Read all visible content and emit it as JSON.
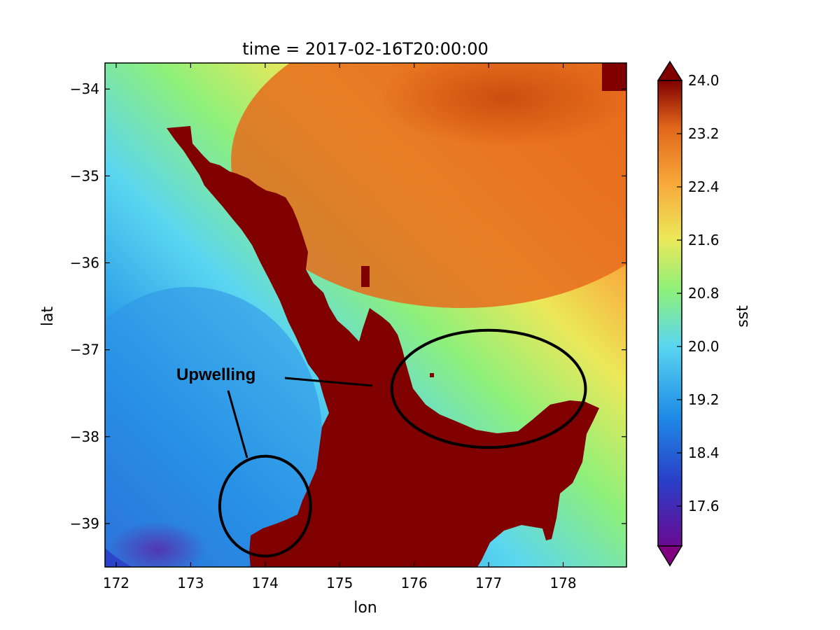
{
  "chart_data": {
    "type": "heatmap",
    "title": "time = 2017-02-16T20:00:00",
    "xlabel": "lon",
    "ylabel": "lat",
    "colorbar_label": "sst",
    "x_ticks": [
      "172",
      "173",
      "174",
      "175",
      "176",
      "177",
      "178"
    ],
    "y_ticks": [
      "−34",
      "−35",
      "−36",
      "−37",
      "−38",
      "−39"
    ],
    "colorbar_ticks": [
      "24.0",
      "23.2",
      "22.4",
      "21.6",
      "20.8",
      "20.0",
      "19.2",
      "18.4",
      "17.6"
    ],
    "xlim": [
      171.85,
      178.85
    ],
    "ylim": [
      -39.5,
      -33.7
    ],
    "clim": [
      17.0,
      24.0
    ],
    "colormap": [
      "#800080",
      "#2a3fc8",
      "#1e8ce6",
      "#5bd6f0",
      "#8ef07a",
      "#ece85a",
      "#f8a83a",
      "#e0661a",
      "#800000"
    ],
    "land_color": "#800000",
    "annotation": {
      "text": "Upwelling",
      "ellipses": [
        {
          "center": [
            177.0,
            -37.45
          ],
          "width_lon": 2.6,
          "height_lat": 1.35
        },
        {
          "center": [
            174.0,
            -38.8
          ],
          "width_lon": 1.22,
          "height_lat": 1.15
        }
      ]
    }
  }
}
